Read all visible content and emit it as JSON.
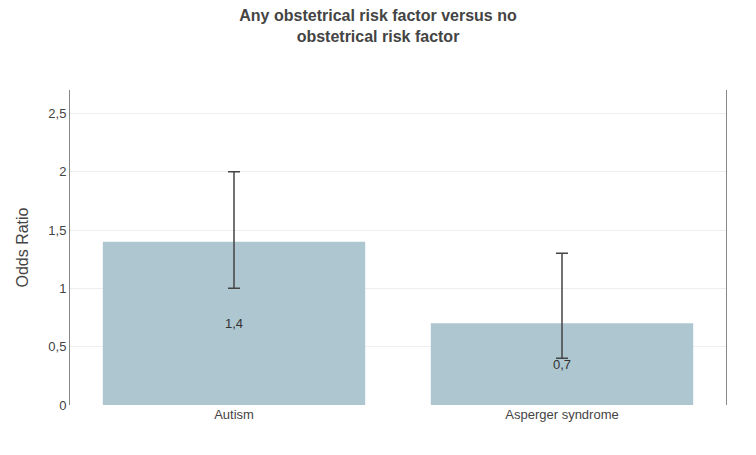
{
  "chart_data": {
    "type": "bar",
    "title": "Any obstetrical risk factor versus no\nobstetrical risk factor",
    "ylabel": "Odds Ratio",
    "categories": [
      "Autism",
      "Asperger syndrome"
    ],
    "values": [
      1.4,
      0.7
    ],
    "value_labels": [
      "1,4",
      "0,7"
    ],
    "data_labels": true,
    "error_lower": [
      0.4,
      0.3
    ],
    "error_upper": [
      0.6,
      0.6
    ],
    "color": "#adc6d0",
    "ylim": [
      0,
      2.7
    ],
    "yticks": [
      0,
      {
        "value": 0.5,
        "label": "0,5"
      },
      1,
      {
        "value": 1.5,
        "label": "1,5"
      },
      2,
      {
        "value": 2.5,
        "label": "2,5"
      }
    ],
    "grid": true
  }
}
